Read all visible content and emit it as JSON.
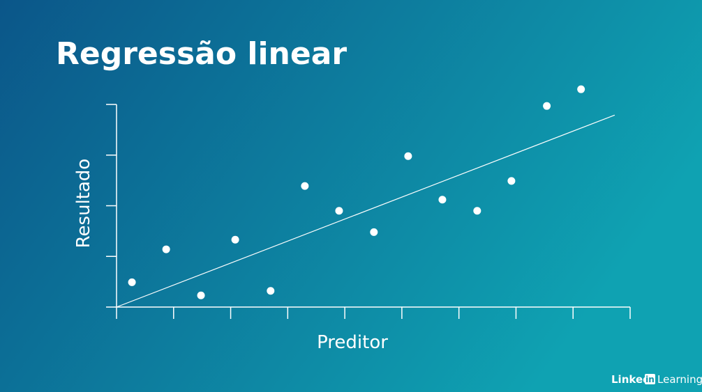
{
  "chart_data": {
    "type": "scatter",
    "title": "Regressão linear",
    "x_label": "Preditor",
    "y_label": "Resultado",
    "x": [
      0.27,
      0.87,
      1.48,
      2.08,
      2.7,
      3.3,
      3.9,
      4.51,
      5.11,
      5.71,
      6.32,
      6.92,
      7.54,
      8.14
    ],
    "values": [
      0.49,
      1.14,
      0.23,
      1.33,
      0.32,
      2.39,
      1.9,
      1.48,
      2.98,
      2.12,
      1.9,
      2.49,
      3.97,
      4.3
    ],
    "color": "#ffffff",
    "regression_line": {
      "x": [
        0,
        8.73
      ],
      "y": [
        0,
        3.79
      ]
    },
    "xlim": [
      0,
      9
    ],
    "xticks": [
      0,
      1,
      2,
      3,
      4,
      5,
      6,
      7,
      8,
      9
    ],
    "ylim": [
      0,
      4
    ],
    "yticks": [
      0,
      1,
      2,
      3,
      4
    ]
  },
  "watermark": {
    "linked": "Linked",
    "in": "in",
    "learning": "Learning"
  }
}
